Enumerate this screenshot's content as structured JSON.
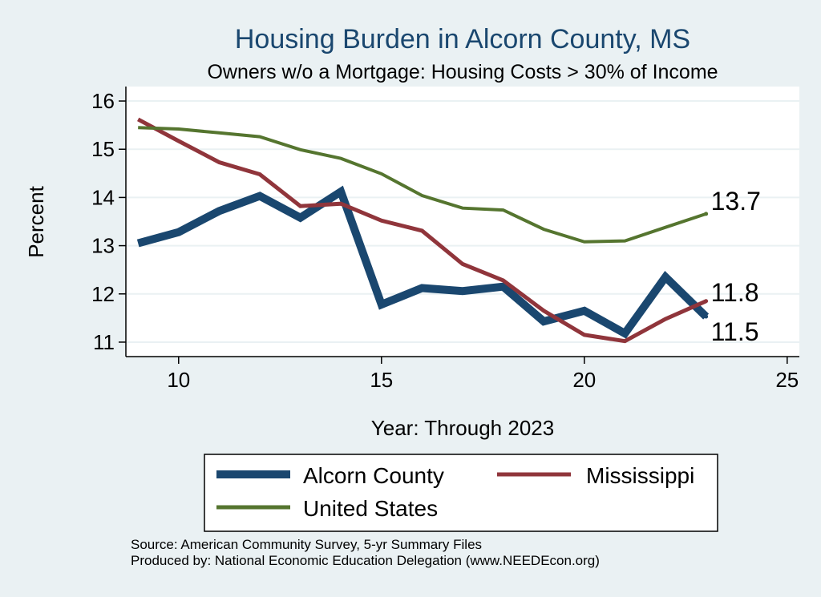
{
  "chart_data": {
    "type": "line",
    "title": "Housing Burden in Alcorn County, MS",
    "subtitle": "Owners w/o a Mortgage: Housing Costs > 30% of Income",
    "xlabel": "Year: Through 2023",
    "ylabel": "Percent",
    "xlim": [
      8.7,
      25.3
    ],
    "ylim": [
      10.7,
      16.3
    ],
    "xticks": [
      10,
      15,
      20,
      25
    ],
    "yticks": [
      11,
      12,
      13,
      14,
      15,
      16
    ],
    "grid": true,
    "legend_position": "bottom",
    "x": [
      9,
      10,
      11,
      12,
      13,
      14,
      15,
      16,
      17,
      18,
      19,
      20,
      21,
      22,
      23
    ],
    "series": [
      {
        "name": "Alcorn County",
        "color": "#1a476f",
        "values": [
          13.05,
          13.28,
          13.72,
          14.03,
          13.58,
          14.12,
          11.78,
          12.12,
          12.06,
          12.15,
          11.43,
          11.65,
          11.18,
          12.35,
          11.53
        ],
        "end_label": "11.5"
      },
      {
        "name": "Mississippi",
        "color": "#90353b",
        "values": [
          15.62,
          15.17,
          14.73,
          14.48,
          13.82,
          13.87,
          13.52,
          13.31,
          12.62,
          12.28,
          11.65,
          11.15,
          11.02,
          11.48,
          11.85
        ],
        "end_label": "11.8"
      },
      {
        "name": "United States",
        "color": "#55752f",
        "values": [
          15.45,
          15.42,
          15.34,
          15.26,
          14.99,
          14.81,
          14.49,
          14.04,
          13.78,
          13.74,
          13.34,
          13.08,
          13.1,
          13.38,
          13.66
        ],
        "end_label": "13.7"
      }
    ]
  },
  "footer": {
    "source": "Source: American Community Survey, 5-yr Summary Files",
    "produced_by": "Produced by: National Economic Education Delegation (www.NEEDEcon.org)"
  }
}
